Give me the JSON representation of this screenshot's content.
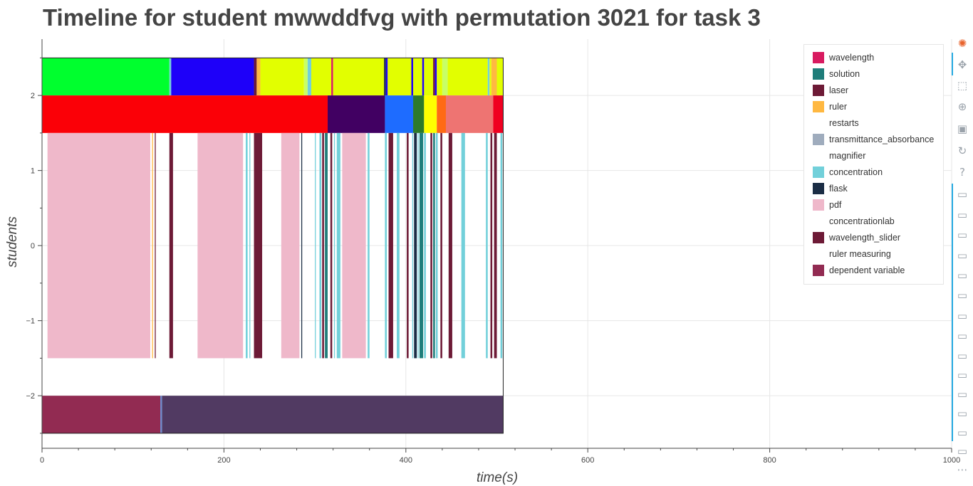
{
  "title": "Timeline for student mwwddfvg with permutation 3021 for task 3",
  "chart_data": {
    "type": "timeline",
    "xlabel": "time(s)",
    "ylabel": "students",
    "xlim": [
      0,
      1000
    ],
    "ylim": [
      -2.7,
      2.75
    ],
    "x_ticks": [
      "0",
      "200",
      "400",
      "600",
      "800",
      "1000"
    ],
    "y_ticks": [
      "−2",
      "−1",
      "0",
      "1",
      "2"
    ],
    "grid": true,
    "legend_position": "top-right",
    "legend": [
      {
        "label": "wavelength",
        "color": "#d81b60"
      },
      {
        "label": "solution",
        "color": "#1f7d7a"
      },
      {
        "label": "laser",
        "color": "#6d1a36"
      },
      {
        "label": "ruler",
        "color": "#ffb841"
      },
      {
        "label": "restarts",
        "color": "#ffffff"
      },
      {
        "label": "transmittance_absorbance",
        "color": "#9facbd"
      },
      {
        "label": "magnifier",
        "color": "#ffffff"
      },
      {
        "label": "concentration",
        "color": "#72d0da"
      },
      {
        "label": "flask",
        "color": "#1b2d45"
      },
      {
        "label": "pdf",
        "color": "#efb8ca"
      },
      {
        "label": "concentrationlab",
        "color": "#ffffff"
      },
      {
        "label": "wavelength_slider",
        "color": "#6d1a36"
      },
      {
        "label": "ruler measuring",
        "color": "#ffffff"
      },
      {
        "label": "dependent variable",
        "color": "#922b52"
      }
    ],
    "rows": [
      {
        "y_range": [
          2,
          2.5
        ],
        "segments": [
          {
            "start": 0,
            "end": 140,
            "color": "#00ff2e"
          },
          {
            "start": 140,
            "end": 142,
            "color": "#72d0da"
          },
          {
            "start": 142,
            "end": 233,
            "color": "#1e00f9"
          },
          {
            "start": 233,
            "end": 236,
            "color": "#6d1a36"
          },
          {
            "start": 236,
            "end": 240,
            "color": "#ffb841"
          },
          {
            "start": 240,
            "end": 288,
            "color": "#e2ff00"
          },
          {
            "start": 288,
            "end": 292,
            "color": "#c8ff66"
          },
          {
            "start": 292,
            "end": 296,
            "color": "#72d0da"
          },
          {
            "start": 296,
            "end": 318,
            "color": "#e2ff00"
          },
          {
            "start": 318,
            "end": 320,
            "color": "#d81b60"
          },
          {
            "start": 320,
            "end": 376,
            "color": "#e2ff00"
          },
          {
            "start": 376,
            "end": 378,
            "color": "#1b2d45"
          },
          {
            "start": 378,
            "end": 380,
            "color": "#1e00f9"
          },
          {
            "start": 380,
            "end": 406,
            "color": "#e2ff00"
          },
          {
            "start": 406,
            "end": 408,
            "color": "#1e00f9"
          },
          {
            "start": 408,
            "end": 418,
            "color": "#e2ff00"
          },
          {
            "start": 418,
            "end": 420,
            "color": "#1e00f9"
          },
          {
            "start": 420,
            "end": 430,
            "color": "#e2ff00"
          },
          {
            "start": 430,
            "end": 432,
            "color": "#6d1a36"
          },
          {
            "start": 432,
            "end": 434,
            "color": "#1e00f9"
          },
          {
            "start": 434,
            "end": 440,
            "color": "#e2ff00"
          },
          {
            "start": 440,
            "end": 446,
            "color": "#c8ff66"
          },
          {
            "start": 446,
            "end": 490,
            "color": "#e2ff00"
          },
          {
            "start": 490,
            "end": 492,
            "color": "#72d0da"
          },
          {
            "start": 492,
            "end": 494,
            "color": "#e2ff00"
          },
          {
            "start": 494,
            "end": 500,
            "color": "#ffb841"
          },
          {
            "start": 500,
            "end": 507,
            "color": "#e2ff00"
          }
        ]
      },
      {
        "y_range": [
          1.5,
          2
        ],
        "segments": [
          {
            "start": 0,
            "end": 314,
            "color": "#fb0007"
          },
          {
            "start": 314,
            "end": 377,
            "color": "#410062"
          },
          {
            "start": 377,
            "end": 408,
            "color": "#1e6cff"
          },
          {
            "start": 408,
            "end": 420,
            "color": "#2d7a2a"
          },
          {
            "start": 420,
            "end": 434,
            "color": "#ffff00"
          },
          {
            "start": 434,
            "end": 444,
            "color": "#ff6a14"
          },
          {
            "start": 444,
            "end": 496,
            "color": "#ee7472"
          },
          {
            "start": 496,
            "end": 507,
            "color": "#f00020"
          }
        ]
      },
      {
        "y_range": [
          -1.5,
          1.5
        ],
        "segments": [
          {
            "start": 6,
            "end": 119,
            "color": "#efb8ca"
          },
          {
            "start": 121,
            "end": 122,
            "color": "#ffb841"
          },
          {
            "start": 124,
            "end": 125,
            "color": "#6d1a36"
          },
          {
            "start": 140,
            "end": 144,
            "color": "#6d1a36"
          },
          {
            "start": 171,
            "end": 221,
            "color": "#efb8ca"
          },
          {
            "start": 224,
            "end": 226,
            "color": "#72d0da"
          },
          {
            "start": 228,
            "end": 229,
            "color": "#72d0da"
          },
          {
            "start": 233,
            "end": 242,
            "color": "#6d1a36"
          },
          {
            "start": 263,
            "end": 283,
            "color": "#efb8ca"
          },
          {
            "start": 285,
            "end": 286,
            "color": "#1b2d45"
          },
          {
            "start": 300,
            "end": 301,
            "color": "#72d0da"
          },
          {
            "start": 305,
            "end": 307,
            "color": "#72d0da"
          },
          {
            "start": 308,
            "end": 310,
            "color": "#6d1a36"
          },
          {
            "start": 311,
            "end": 314,
            "color": "#1f7d7a"
          },
          {
            "start": 317,
            "end": 319,
            "color": "#6d1a36"
          },
          {
            "start": 321,
            "end": 322,
            "color": "#72d0da"
          },
          {
            "start": 324,
            "end": 328,
            "color": "#72d0da"
          },
          {
            "start": 330,
            "end": 356,
            "color": "#efb8ca"
          },
          {
            "start": 358,
            "end": 360,
            "color": "#72d0da"
          },
          {
            "start": 377,
            "end": 379,
            "color": "#72d0da"
          },
          {
            "start": 381,
            "end": 386,
            "color": "#6d1a36"
          },
          {
            "start": 390,
            "end": 393,
            "color": "#72d0da"
          },
          {
            "start": 401,
            "end": 403,
            "color": "#6d1a36"
          },
          {
            "start": 407,
            "end": 408,
            "color": "#72d0da"
          },
          {
            "start": 409,
            "end": 412,
            "color": "#1b2d45"
          },
          {
            "start": 413,
            "end": 414,
            "color": "#72d0da"
          },
          {
            "start": 415,
            "end": 419,
            "color": "#1f7d7a"
          },
          {
            "start": 420,
            "end": 422,
            "color": "#72d0da"
          },
          {
            "start": 427,
            "end": 429,
            "color": "#6d1a36"
          },
          {
            "start": 430,
            "end": 432,
            "color": "#1f7d7a"
          },
          {
            "start": 433,
            "end": 435,
            "color": "#72d0da"
          },
          {
            "start": 438,
            "end": 440,
            "color": "#6d1a36"
          },
          {
            "start": 447,
            "end": 451,
            "color": "#6d1a36"
          },
          {
            "start": 461,
            "end": 465,
            "color": "#72d0da"
          },
          {
            "start": 488,
            "end": 490,
            "color": "#72d0da"
          },
          {
            "start": 493,
            "end": 495,
            "color": "#6d1a36"
          },
          {
            "start": 497,
            "end": 500,
            "color": "#6d1a36"
          },
          {
            "start": 504,
            "end": 506,
            "color": "#72d0da"
          }
        ]
      },
      {
        "y_range": [
          -2.5,
          -2
        ],
        "segments": [
          {
            "start": 0,
            "end": 130,
            "color": "#922b52"
          },
          {
            "start": 130,
            "end": 132,
            "color": "#6f88c8"
          },
          {
            "start": 132,
            "end": 507,
            "color": "#513a62"
          }
        ]
      }
    ]
  },
  "toolbar": {
    "tools": [
      {
        "name": "bokeh-logo-icon",
        "glyph": "✺"
      },
      {
        "name": "pan-tool-icon",
        "glyph": "✥"
      },
      {
        "name": "box-zoom-icon",
        "glyph": "⬚"
      },
      {
        "name": "wheel-zoom-icon",
        "glyph": "⊕"
      },
      {
        "name": "save-tool-icon",
        "glyph": "▣"
      },
      {
        "name": "reset-tool-icon",
        "glyph": "↻"
      },
      {
        "name": "help-icon",
        "glyph": "?"
      },
      {
        "name": "hover-tool-icon",
        "glyph": "▭"
      },
      {
        "name": "hover-tool-icon",
        "glyph": "▭"
      },
      {
        "name": "hover-tool-icon",
        "glyph": "▭"
      },
      {
        "name": "hover-tool-icon",
        "glyph": "▭"
      },
      {
        "name": "hover-tool-icon",
        "glyph": "▭"
      },
      {
        "name": "hover-tool-icon",
        "glyph": "▭"
      },
      {
        "name": "hover-tool-icon",
        "glyph": "▭"
      },
      {
        "name": "hover-tool-icon",
        "glyph": "▭"
      },
      {
        "name": "hover-tool-icon",
        "glyph": "▭"
      },
      {
        "name": "hover-tool-icon",
        "glyph": "▭"
      },
      {
        "name": "hover-tool-icon",
        "glyph": "▭"
      },
      {
        "name": "hover-tool-icon",
        "glyph": "▭"
      },
      {
        "name": "hover-tool-icon",
        "glyph": "▭"
      },
      {
        "name": "hover-tool-icon",
        "glyph": "▭"
      },
      {
        "name": "more-tools-icon",
        "glyph": "⋯"
      }
    ]
  }
}
